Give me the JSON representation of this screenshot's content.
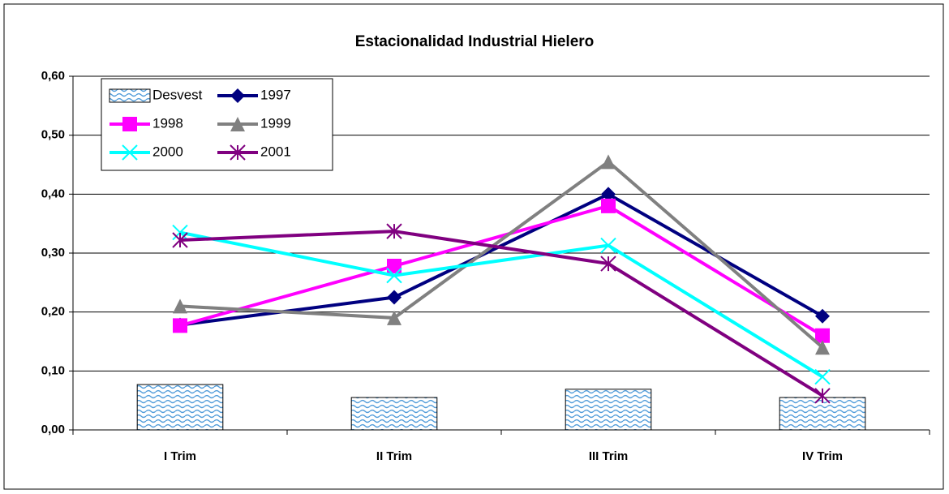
{
  "chart_data": {
    "type": "line",
    "title": "Estacionalidad Industrial Hielero",
    "categories": [
      "I Trim",
      "II Trim",
      "III Trim",
      "IV Trim"
    ],
    "ylim": [
      0,
      0.6
    ],
    "yticks": [
      {
        "value": 0,
        "label": "0,00"
      },
      {
        "value": 0.1,
        "label": "0,10"
      },
      {
        "value": 0.2,
        "label": "0,20"
      },
      {
        "value": 0.3,
        "label": "0,30"
      },
      {
        "value": 0.4,
        "label": "0,40"
      },
      {
        "value": 0.5,
        "label": "0,50"
      },
      {
        "value": 0.6,
        "label": "0,60"
      }
    ],
    "grid": true,
    "legend": "top-left",
    "series": [
      {
        "name": "Desvest",
        "type": "bar",
        "color": "#99ccff",
        "values": [
          0.077,
          0.055,
          0.069,
          0.055
        ]
      },
      {
        "name": "1997",
        "color": "#000080",
        "marker": "diamond",
        "values": [
          0.178,
          0.225,
          0.4,
          0.193
        ]
      },
      {
        "name": "1998",
        "color": "#ff00ff",
        "marker": "square",
        "values": [
          0.177,
          0.278,
          0.38,
          0.16
        ]
      },
      {
        "name": "1999",
        "color": "#808080",
        "marker": "triangle",
        "values": [
          0.21,
          0.19,
          0.455,
          0.14
        ]
      },
      {
        "name": "2000",
        "color": "#00ffff",
        "marker": "x",
        "values": [
          0.335,
          0.262,
          0.313,
          0.09
        ]
      },
      {
        "name": "2001",
        "color": "#800080",
        "marker": "star",
        "values": [
          0.322,
          0.337,
          0.282,
          0.058
        ]
      }
    ]
  }
}
